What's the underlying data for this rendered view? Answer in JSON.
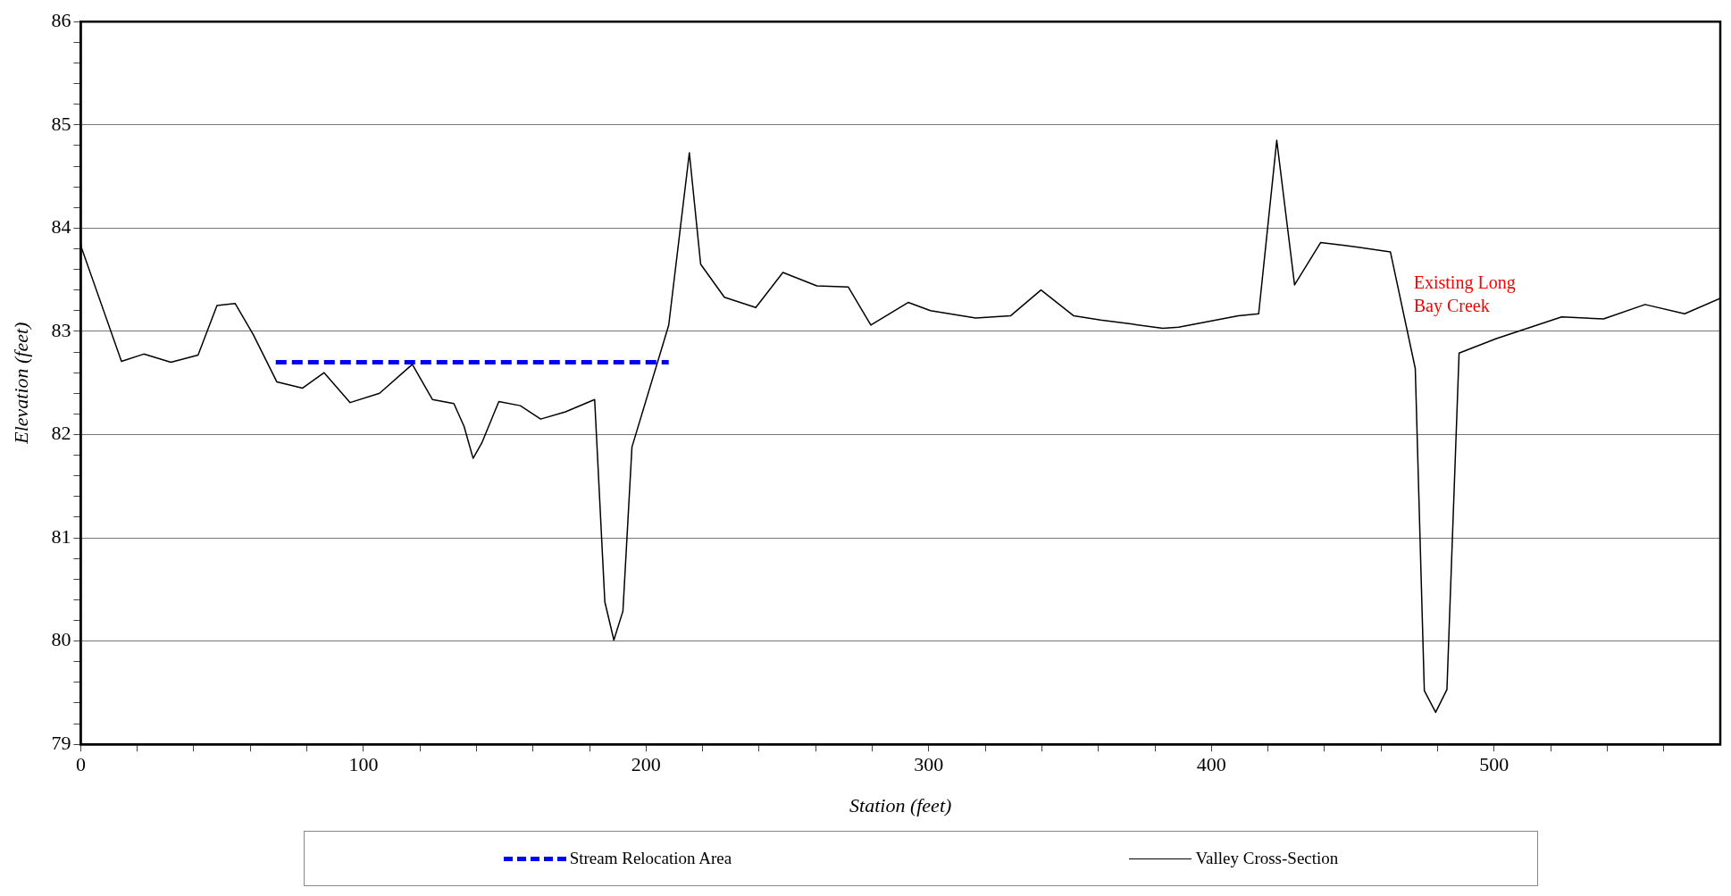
{
  "chart_data": {
    "type": "line",
    "xlabel": "Station (feet)",
    "ylabel": "Elevation (feet)",
    "xlim": [
      0,
      580
    ],
    "ylim": [
      79,
      86
    ],
    "xticks": [
      0,
      {
        "value": 20,
        "label": null
      },
      {
        "value": 40,
        "label": null
      },
      {
        "value": 60,
        "label": null
      },
      {
        "value": 80,
        "label": null
      },
      100,
      {
        "value": 120,
        "label": null
      },
      {
        "value": 140,
        "label": null
      },
      {
        "value": 160,
        "label": null
      },
      {
        "value": 180,
        "label": null
      },
      200,
      {
        "value": 220,
        "label": null
      },
      {
        "value": 240,
        "label": null
      },
      {
        "value": 260,
        "label": null
      },
      {
        "value": 280,
        "label": null
      },
      300,
      {
        "value": 320,
        "label": null
      },
      {
        "value": 340,
        "label": null
      },
      {
        "value": 360,
        "label": null
      },
      {
        "value": 380,
        "label": null
      },
      400,
      {
        "value": 420,
        "label": null
      },
      {
        "value": 440,
        "label": null
      },
      {
        "value": 460,
        "label": null
      },
      {
        "value": 480,
        "label": null
      },
      500,
      {
        "value": 520,
        "label": null
      },
      {
        "value": 540,
        "label": null
      },
      {
        "value": 560,
        "label": null
      }
    ],
    "yticks": [
      79,
      {
        "value": 79.2,
        "label": null
      },
      {
        "value": 79.4,
        "label": null
      },
      {
        "value": 79.6,
        "label": null
      },
      {
        "value": 79.8,
        "label": null
      },
      80,
      {
        "value": 80.2,
        "label": null
      },
      {
        "value": 80.4,
        "label": null
      },
      {
        "value": 80.6,
        "label": null
      },
      {
        "value": 80.8,
        "label": null
      },
      81,
      {
        "value": 81.2,
        "label": null
      },
      {
        "value": 81.4,
        "label": null
      },
      {
        "value": 81.6,
        "label": null
      },
      {
        "value": 81.8,
        "label": null
      },
      82,
      {
        "value": 82.2,
        "label": null
      },
      {
        "value": 82.4,
        "label": null
      },
      {
        "value": 82.6,
        "label": null
      },
      {
        "value": 82.8,
        "label": null
      },
      83,
      {
        "value": 83.2,
        "label": null
      },
      {
        "value": 83.4,
        "label": null
      },
      {
        "value": 83.6,
        "label": null
      },
      {
        "value": 83.8,
        "label": null
      },
      84,
      {
        "value": 84.2,
        "label": null
      },
      {
        "value": 84.4,
        "label": null
      },
      {
        "value": 84.6,
        "label": null
      },
      {
        "value": 84.8,
        "label": null
      },
      85,
      {
        "value": 85.2,
        "label": null
      },
      {
        "value": 85.4,
        "label": null
      },
      {
        "value": 85.6,
        "label": null
      },
      {
        "value": 85.8,
        "label": null
      },
      86
    ],
    "grid": "y",
    "legend": "bottom",
    "marker": "none",
    "series": [
      {
        "name": "Stream Relocation Area",
        "color": "#0000ff",
        "line_style": "dashed",
        "x": [
          69,
          208
        ],
        "values": [
          82.7,
          82.7
        ]
      },
      {
        "name": "Valley Cross-Section",
        "color": "#000000",
        "line_style": "solid",
        "x": [
          0,
          14.4,
          22.3,
          31.9,
          41.5,
          48.2,
          54.6,
          61,
          69.4,
          78.5,
          86.1,
          95.3,
          105.7,
          117.3,
          124.4,
          132,
          135.6,
          138.8,
          141.9,
          147.9,
          155.5,
          162.7,
          171.5,
          181.8,
          185.4,
          188.6,
          191.8,
          195,
          208,
          215.3,
          219.3,
          227.7,
          238.8,
          248.4,
          260.4,
          271.5,
          279.5,
          292.7,
          300.6,
          316.6,
          328.9,
          339.7,
          351.3,
          360.8,
          372,
          382.8,
          388.4,
          409.5,
          416.7,
          423.1,
          429.4,
          438.6,
          447.8,
          463.3,
          472.1,
          475.3,
          479.3,
          483.3,
          487.6,
          500.8,
          523.9,
          538.7,
          553.4,
          567.4,
          580
        ],
        "values": [
          83.83,
          82.71,
          82.78,
          82.7,
          82.77,
          83.25,
          83.27,
          82.97,
          82.51,
          82.45,
          82.6,
          82.31,
          82.4,
          82.68,
          82.34,
          82.3,
          82.08,
          81.77,
          81.92,
          82.32,
          82.28,
          82.15,
          82.22,
          82.34,
          80.38,
          80.01,
          80.29,
          81.88,
          83.06,
          84.73,
          83.65,
          83.33,
          83.23,
          83.57,
          83.44,
          83.43,
          83.06,
          83.28,
          83.2,
          83.13,
          83.15,
          83.4,
          83.15,
          83.11,
          83.07,
          83.03,
          83.04,
          83.15,
          83.17,
          84.85,
          83.45,
          83.86,
          83.83,
          83.77,
          82.64,
          79.52,
          79.31,
          79.53,
          82.79,
          82.93,
          83.14,
          83.12,
          83.26,
          83.17,
          83.32
        ]
      }
    ],
    "annotations": [
      "Existing Long Bay Creek"
    ]
  }
}
